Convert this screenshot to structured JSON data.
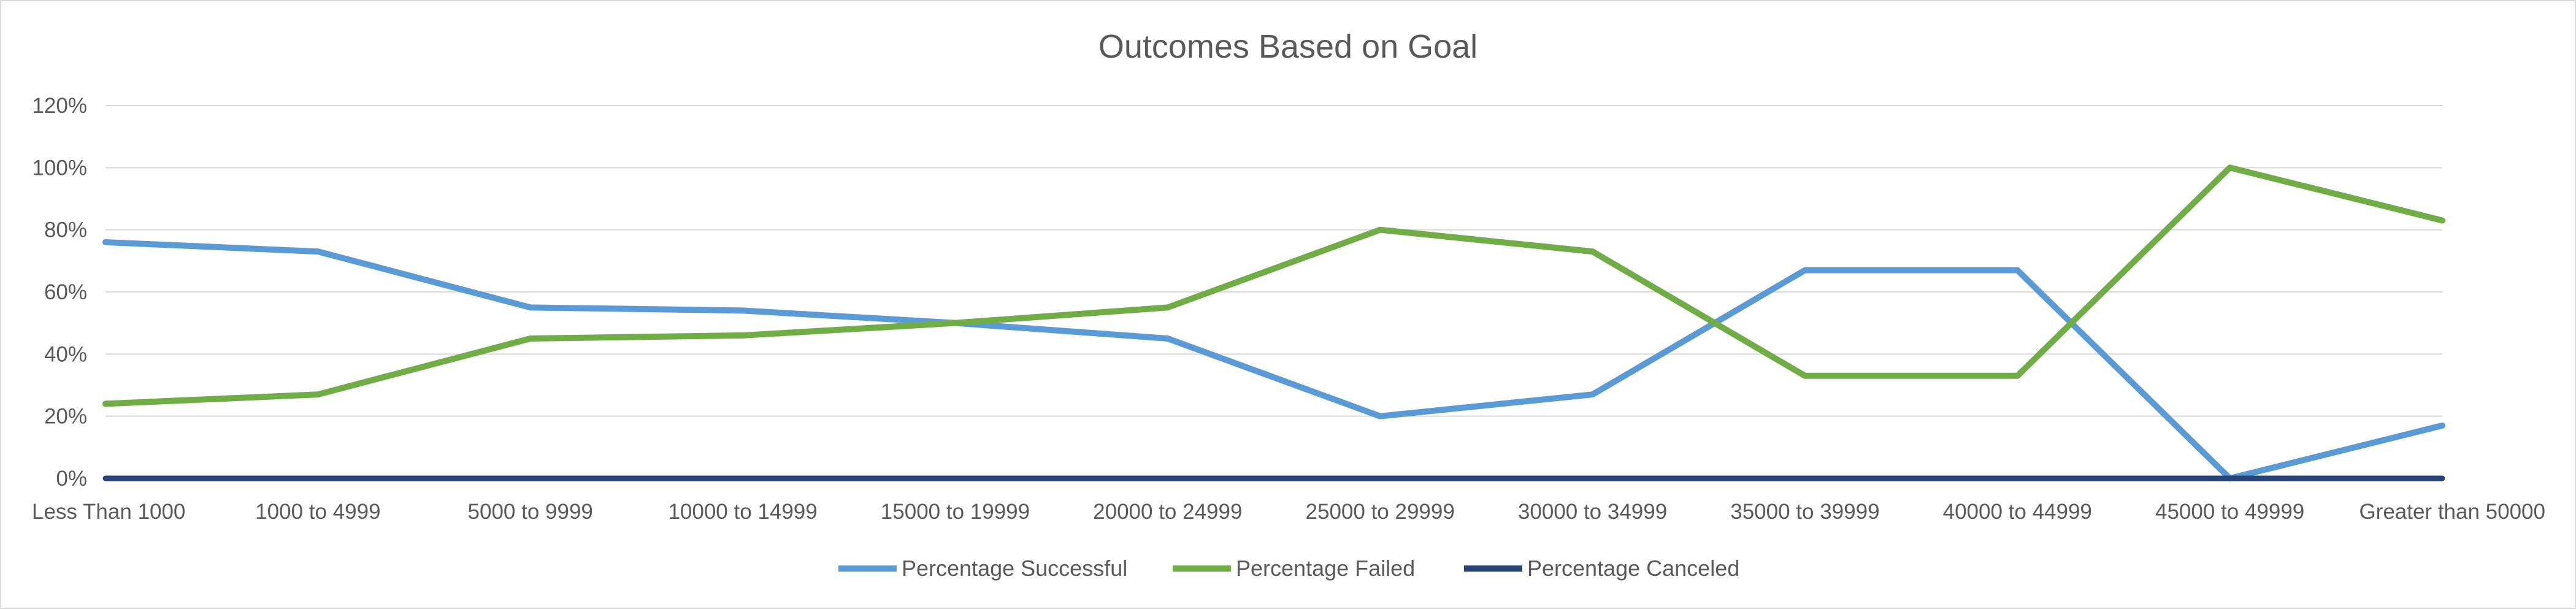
{
  "chart_data": {
    "type": "line",
    "title": "Outcomes Based on Goal",
    "xlabel": "",
    "ylabel": "",
    "categories": [
      "Less Than 1000",
      "1000 to 4999",
      "5000 to 9999",
      "10000 to 14999",
      "15000 to 19999",
      "20000 to 24999",
      "25000 to 29999",
      "30000 to 34999",
      "35000 to 39999",
      "40000 to 44999",
      "45000 to 49999",
      "Greater than 50000"
    ],
    "y_ticks": [
      "0%",
      "20%",
      "40%",
      "60%",
      "80%",
      "100%",
      "120%"
    ],
    "ylim": [
      0,
      1.2
    ],
    "grid": true,
    "legend_position": "bottom",
    "series": [
      {
        "name": "Percentage Successful",
        "color": "#5b9bd5",
        "values": [
          0.76,
          0.73,
          0.55,
          0.54,
          0.5,
          0.45,
          0.2,
          0.27,
          0.67,
          0.67,
          0.0,
          0.17
        ]
      },
      {
        "name": "Percentage Failed",
        "color": "#70ad47",
        "values": [
          0.24,
          0.27,
          0.45,
          0.46,
          0.5,
          0.55,
          0.8,
          0.73,
          0.33,
          0.33,
          1.0,
          0.83
        ]
      },
      {
        "name": "Percentage Canceled",
        "color": "#264478",
        "values": [
          0,
          0,
          0,
          0,
          0,
          0,
          0,
          0,
          0,
          0,
          0,
          0
        ]
      }
    ]
  }
}
